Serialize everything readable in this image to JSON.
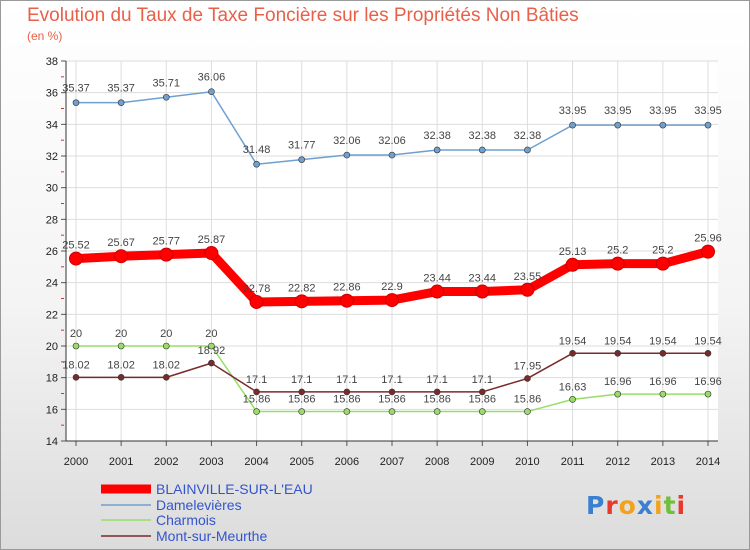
{
  "chart_data": {
    "type": "line",
    "title": "Evolution du Taux de Taxe Foncière sur les Propriétés Non Bâties",
    "subtitle": "(en %)",
    "categories": [
      "2000",
      "2001",
      "2002",
      "2003",
      "2004",
      "2005",
      "2006",
      "2007",
      "2008",
      "2009",
      "2010",
      "2011",
      "2012",
      "2013",
      "2014"
    ],
    "ylim": [
      14,
      38
    ],
    "yticks": [
      "14",
      "16",
      "18",
      "20",
      "22",
      "24",
      "26",
      "28",
      "30",
      "32",
      "34",
      "36",
      "38"
    ],
    "series": [
      {
        "name": "BLAINVILLE-SUR-L'EAU",
        "color": "#ff0000",
        "values": [
          25.52,
          25.67,
          25.77,
          25.87,
          22.78,
          22.82,
          22.86,
          22.9,
          23.44,
          23.44,
          23.55,
          25.13,
          25.2,
          25.2,
          25.96
        ],
        "labels": [
          "25.52",
          "25.67",
          "25.77",
          "25.87",
          "22.78",
          "22.82",
          "22.86",
          "22.9",
          "23.44",
          "23.44",
          "23.55",
          "25.13",
          "25.2",
          "25.2",
          "25.96"
        ]
      },
      {
        "name": "Damelevières",
        "color": "#6fa0cf",
        "values": [
          35.37,
          35.37,
          35.71,
          36.06,
          31.48,
          31.77,
          32.06,
          32.06,
          32.38,
          32.38,
          32.38,
          33.95,
          33.95,
          33.95,
          33.95
        ],
        "labels": [
          "35.37",
          "35.37",
          "35.71",
          "36.06",
          "31.48",
          "31.77",
          "32.06",
          "32.06",
          "32.38",
          "32.38",
          "32.38",
          "33.95",
          "33.95",
          "33.95",
          "33.95"
        ]
      },
      {
        "name": "Charmois",
        "color": "#99dd66",
        "values": [
          20,
          20,
          20,
          20,
          15.86,
          15.86,
          15.86,
          15.86,
          15.86,
          15.86,
          15.86,
          16.63,
          16.96,
          16.96,
          16.96
        ],
        "labels": [
          "20",
          "20",
          "20",
          "20",
          "15.86",
          "15.86",
          "15.86",
          "15.86",
          "15.86",
          "15.86",
          "15.86",
          "16.63",
          "16.96",
          "16.96",
          "16.96"
        ]
      },
      {
        "name": "Mont-sur-Meurthe",
        "color": "#7a2a2a",
        "values": [
          18.02,
          18.02,
          18.02,
          18.92,
          17.1,
          17.1,
          17.1,
          17.1,
          17.1,
          17.1,
          17.95,
          19.54,
          19.54,
          19.54,
          19.54
        ],
        "labels": [
          "18.02",
          "18.02",
          "18.02",
          "18.92",
          "17.1",
          "17.1",
          "17.1",
          "17.1",
          "17.1",
          "17.1",
          "17.95",
          "19.54",
          "19.54",
          "19.54",
          "19.54"
        ]
      }
    ],
    "grid": true,
    "legend": "bottom-left"
  },
  "logo": {
    "text": "Proxiti",
    "letters": [
      "P",
      "r",
      "o",
      "x",
      "i",
      "t",
      "i"
    ],
    "colors": [
      "#3a7fd0",
      "#e63a2e",
      "#f2a21c",
      "#3a7fd0",
      "#f2a21c",
      "#6fbf3a",
      "#e63a2e"
    ]
  }
}
